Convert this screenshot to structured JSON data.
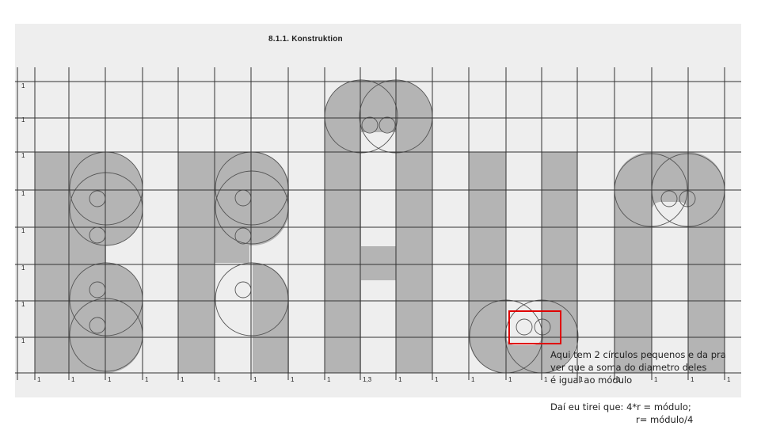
{
  "figure": {
    "title": "8.1.1. Konstruktion",
    "module_label": "1",
    "special_module_label": "1,3"
  },
  "annotation": {
    "lines": [
      "Aqui tem 2 círculos pequenos e da pra",
      "ver que a soma do diametro deles",
      "é igual ao módulo"
    ],
    "conclusion": "Daí eu tirei que: 4*r = módulo;",
    "formula": "r= módulo/4"
  },
  "colors": {
    "paper": "#eeeeee",
    "letter_fill": "#b4b4b4",
    "grid_line": "#333333",
    "highlight": "#e00000"
  }
}
